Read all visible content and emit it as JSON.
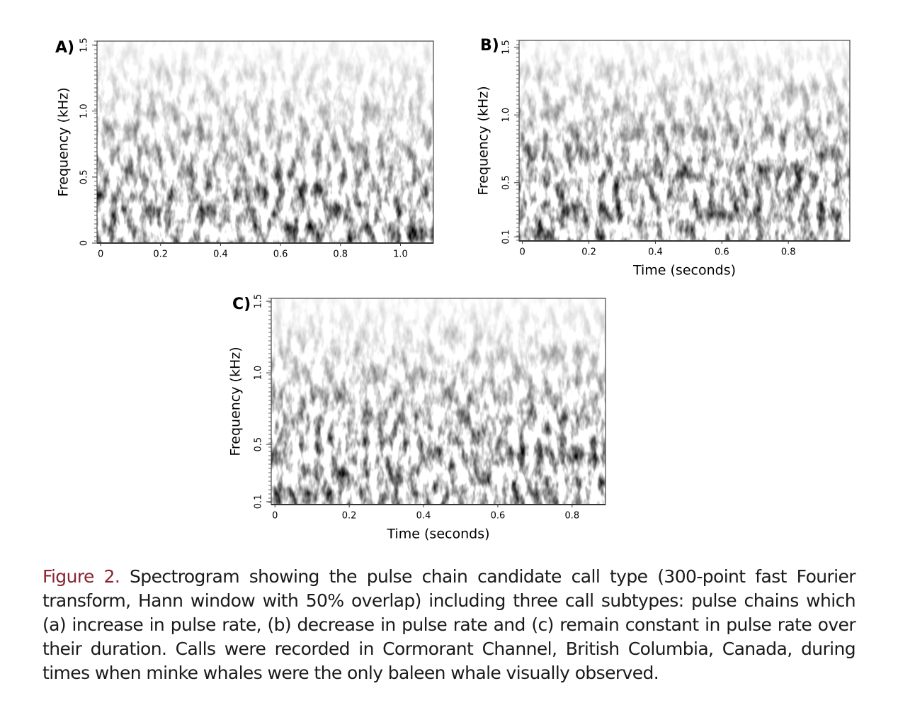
{
  "figure": {
    "panels": [
      {
        "label": "A)",
        "y_axis_label": "Frequency (kHz)",
        "xlim": [
          -0.012,
          1.11
        ],
        "xticks": [
          0,
          0.2,
          0.4,
          0.6,
          0.8,
          {
            "value": 1,
            "label": "1.0"
          }
        ],
        "ylim": [
          0,
          1.53
        ],
        "yticks": [
          0,
          0.5,
          {
            "value": 1,
            "label": "1.0"
          },
          1.5
        ]
      },
      {
        "label": "B)",
        "y_axis_label": "Frequency (kHz)",
        "x_axis_label": "Time (seconds)",
        "xlim": [
          -0.01,
          0.985
        ],
        "xticks": [
          0,
          0.2,
          0.4,
          0.6,
          0.8
        ],
        "ylim": [
          0.07,
          1.55
        ],
        "yticks": [
          0.1,
          0.5,
          {
            "value": 1,
            "label": "1.0"
          },
          1.5
        ]
      },
      {
        "label": "C)",
        "y_axis_label": "Frequency (kHz)",
        "x_axis_label": "Time (seconds)",
        "xlim": [
          -0.01,
          0.89
        ],
        "xticks": [
          0,
          0.2,
          0.4,
          0.6,
          0.8
        ],
        "ylim": [
          0.08,
          1.52
        ],
        "yticks": [
          0.1,
          0.5,
          {
            "value": 1,
            "label": "1.0"
          },
          1.5
        ]
      }
    ],
    "caption_label": "Figure 2.",
    "caption_text": "Spectrogram showing the pulse chain candidate call type (300-point fast Fourier transform, Hann window with 50% overlap) including three call subtypes: pulse chains which (a) increase in pulse rate, (b) decrease in pulse rate and (c) remain constant in pulse rate over their duration. Calls were recorded in Cormorant Channel, British Columbia, Canada, during times when minke whales were the only baleen whale visually observed."
  }
}
